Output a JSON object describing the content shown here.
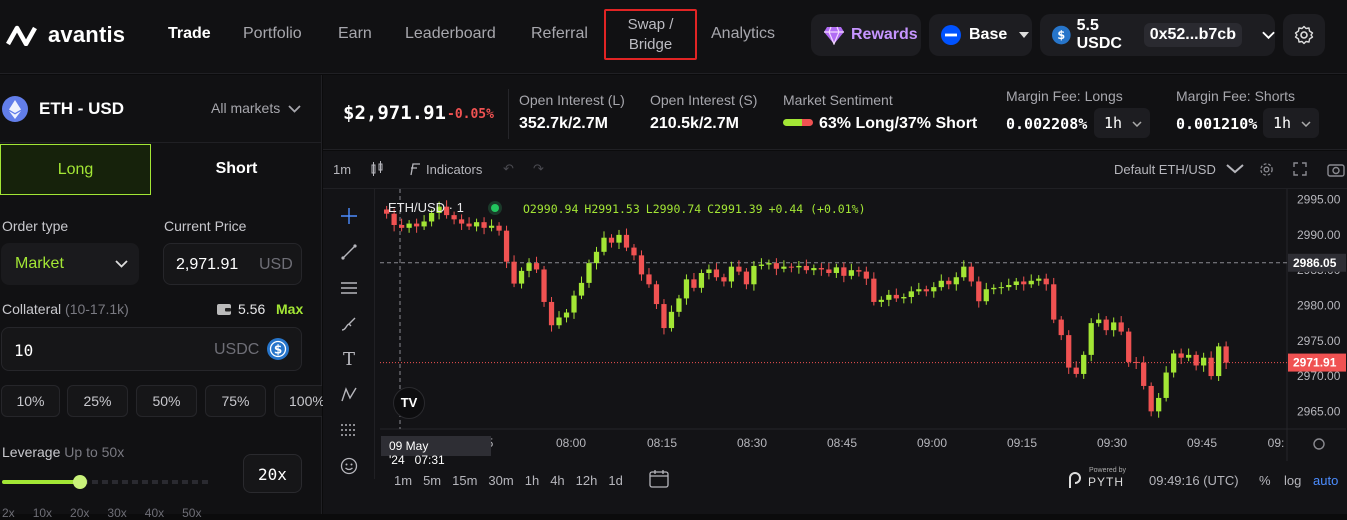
{
  "brand": {
    "name": "avantis"
  },
  "nav": {
    "trade": "Trade",
    "portfolio": "Portfolio",
    "earn": "Earn",
    "leaderboard": "Leaderboard",
    "referral": "Referral",
    "swap_line1": "Swap /",
    "swap_line2": "Bridge",
    "analytics": "Analytics"
  },
  "header": {
    "rewards": "Rewards",
    "network": "Base",
    "balance": "5.5 USDC",
    "address": "0x52...b7cb"
  },
  "market": {
    "pair": "ETH - USD",
    "all_markets": "All markets"
  },
  "tabs": {
    "long": "Long",
    "short": "Short"
  },
  "order": {
    "type_label": "Order type",
    "type_value": "Market",
    "price_label": "Current Price",
    "price_value": "2,971.91",
    "price_unit": "USD",
    "collateral_label": "Collateral",
    "collateral_range": "(10-17.1k)",
    "balance": "5.56",
    "max": "Max",
    "collateral_value": "10",
    "collateral_unit": "USDC",
    "pcts": [
      "10%",
      "25%",
      "50%",
      "75%",
      "100%"
    ],
    "leverage_label": "Leverage",
    "leverage_hint": "Up to 50x",
    "leverage_value": "20x",
    "leverage_ticks": [
      "2x",
      "10x",
      "20x",
      "30x",
      "40x",
      "50x"
    ]
  },
  "stats": {
    "price": "$2,971.91",
    "change": "-0.05%",
    "oi_long_label": "Open Interest (L)",
    "oi_long": "352.7k/2.7M",
    "oi_short_label": "Open Interest (S)",
    "oi_short": "210.5k/2.7M",
    "sentiment_label": "Market Sentiment",
    "sentiment": "63% Long/37% Short",
    "fee_long_label": "Margin Fee: Longs",
    "fee_long": "0.002208%",
    "fee_long_period": "1h",
    "fee_short_label": "Margin Fee: Shorts",
    "fee_short": "0.001210%",
    "fee_short_period": "1h"
  },
  "chart_toolbar": {
    "interval": "1m",
    "indicators": "Indicators",
    "template": "Default ETH/USD"
  },
  "chart_legend": {
    "symbol": "ETH/USD · 1",
    "o": "O2990.94",
    "h": "H2991.53",
    "l": "L2990.74",
    "c": "C2991.39",
    "chg": "+0.44 (+0.01%)"
  },
  "chart_bottom": {
    "ranges": [
      "1m",
      "5m",
      "15m",
      "30m",
      "1h",
      "4h",
      "12h",
      "1d"
    ],
    "pyth_powered": "Powered by",
    "pyth": "PYTH",
    "time": "09:49:16 (UTC)",
    "pct": "%",
    "log": "log",
    "auto": "auto",
    "crosshair_date": "09 May '24",
    "crosshair_time": "07:31"
  },
  "chart_data": {
    "type": "candlestick",
    "x_ticks": [
      "5",
      "08:00",
      "08:15",
      "08:30",
      "08:45",
      "09:00",
      "09:15",
      "09:30",
      "09:45",
      "09:"
    ],
    "y_ticks": [
      2995,
      2990,
      2985,
      2980,
      2975,
      2970,
      2965
    ],
    "ylim": [
      2962.5,
      2996.5
    ],
    "price_line": 2971.91,
    "price_label": "2971.91",
    "crosshair_price": 2986.05,
    "crosshair_label": "2986.05",
    "y_tick_labels": [
      "2995.00",
      "2990.00",
      "2985.00",
      "2980.00",
      "2975.00",
      "2970.00",
      "2965.00"
    ],
    "closes": [
      2993.0,
      2991.4,
      2991.0,
      2991.6,
      2991.2,
      2991.9,
      2993.1,
      2994.0,
      2992.8,
      2992.2,
      2991.6,
      2991.2,
      2991.8,
      2991.0,
      2991.3,
      2990.6,
      2986.2,
      2983.1,
      2984.9,
      2986.0,
      2985.1,
      2980.5,
      2977.2,
      2978.3,
      2979.0,
      2981.4,
      2983.2,
      2986.0,
      2987.6,
      2989.6,
      2988.9,
      2990.0,
      2988.2,
      2987.1,
      2984.4,
      2983.0,
      2980.2,
      2976.8,
      2979.1,
      2981.0,
      2983.7,
      2982.5,
      2984.6,
      2985.1,
      2984.0,
      2983.4,
      2985.5,
      2984.8,
      2983.0,
      2985.6,
      2985.8,
      2986.0,
      2985.2,
      2985.5,
      2985.4,
      2985.6,
      2985.0,
      2985.3,
      2985.1,
      2984.6,
      2985.4,
      2984.2,
      2985.0,
      2984.8,
      2983.8,
      2980.5,
      2980.8,
      2981.5,
      2981.0,
      2981.2,
      2982.0,
      2982.3,
      2982.0,
      2982.6,
      2983.5,
      2983.0,
      2984.0,
      2985.5,
      2983.4,
      2980.6,
      2982.3,
      2982.5,
      2982.6,
      2982.9,
      2983.4,
      2983.0,
      2983.5,
      2983.8,
      2983.0,
      2978.0,
      2975.8,
      2971.2,
      2970.3,
      2973.0,
      2977.5,
      2978.0,
      2976.5,
      2977.6,
      2976.3,
      2972.0,
      2971.9,
      2968.6,
      2965.0,
      2966.9,
      2970.5,
      2973.2,
      2972.6,
      2973.0,
      2971.5,
      2972.6,
      2970.0,
      2974.2,
      2971.9
    ]
  }
}
